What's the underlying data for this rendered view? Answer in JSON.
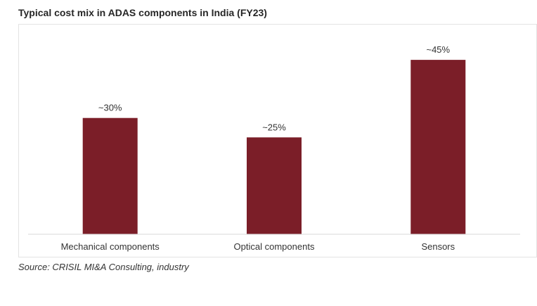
{
  "chart_data": {
    "type": "bar",
    "title": "Typical cost mix in ADAS components in India (FY23)",
    "categories": [
      "Mechanical components",
      "Optical components",
      "Sensors"
    ],
    "values": [
      30,
      25,
      45
    ],
    "data_labels": [
      "~30%",
      "~25%",
      "~45%"
    ],
    "unit": "%",
    "ylim": [
      0,
      50
    ],
    "grid": false,
    "legend": "none",
    "source": "Source: CRISIL MI&A Consulting, industry",
    "colors": {
      "bar": "#7b1e28",
      "axis": "#d9d9d9",
      "text": "#333333"
    }
  }
}
